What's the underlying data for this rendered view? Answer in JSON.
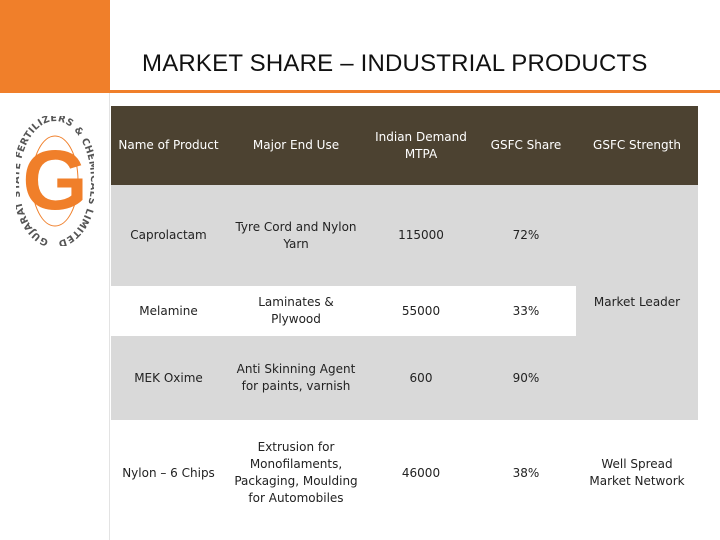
{
  "slide": {
    "title": "MARKET SHARE – INDUSTRIAL PRODUCTS"
  },
  "logo": {
    "letter": "G",
    "ring_text": "GUJARAT STATE FERTILIZERS & CHEMICALS LIMITED",
    "color": "#f07f2a"
  },
  "table": {
    "headers": [
      "Name of Product",
      "Major End Use",
      "Indian Demand MTPA",
      "GSFC Share",
      "GSFC Strength"
    ],
    "rows": [
      {
        "product": "Caprolactam",
        "end_use": "Tyre Cord and Nylon Yarn",
        "demand": "115000",
        "share": "72%"
      },
      {
        "product": "Melamine",
        "end_use": "Laminates & Plywood",
        "demand": "55000",
        "share": "33%"
      },
      {
        "product": "MEK Oxime",
        "end_use": "Anti Skinning Agent for paints, varnish",
        "demand": "600",
        "share": "90%"
      },
      {
        "product": "Nylon – 6 Chips",
        "end_use": "Extrusion for Monofilaments, Packaging, Moulding for Automobiles",
        "demand": "46000",
        "share": "38%"
      }
    ],
    "strength": {
      "market_leader": "Market Leader",
      "network": "Well Spread Market Network"
    }
  },
  "colors": {
    "accent": "#f07f2a",
    "header_bg": "#4c4231",
    "row_gray": "#d9d9d9"
  }
}
